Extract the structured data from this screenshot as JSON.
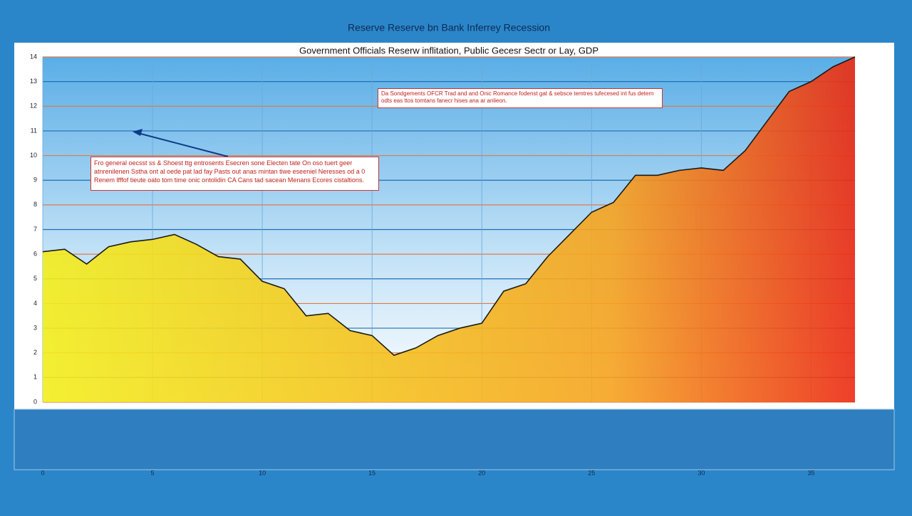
{
  "chart_data": {
    "type": "area",
    "title": "Reserve Reserve bn Bank Inferrey Recession",
    "subtitle": "Government Officials Reserw inflitation, Public Gecesr Sectr or Lay, GDP",
    "annotations": [
      "Da Sondgements OFCR Trad and and Onic Romance fodenst gat & sebsce temtres tufecesed int fus detern odts eas ttos tomtans fanecr hises ana ar anlieon.",
      "Fro general oecsst ss & Shoest ttg entrosents Esecren sone Electen tate On oso tuert geer atnrenilenen Sstha ont al oede pat lad fay Pasts out anas mintan tiwe eseeniel Neresses od a 0 Renem lfffof tieute oato tom time onic ontolidin CA Cans tad sacean Menans Ecores cistaltions."
    ],
    "x": [
      0,
      1,
      2,
      3,
      4,
      5,
      6,
      7,
      8,
      9,
      10,
      11,
      12,
      13,
      14,
      15,
      16,
      17,
      18,
      19,
      20,
      21,
      22,
      23,
      24,
      25,
      26,
      27,
      28,
      29,
      30,
      31,
      32,
      33,
      34,
      35,
      36,
      37
    ],
    "series": [
      {
        "name": "GDP",
        "color": "#1a1a1a",
        "gradient": [
          "#f3ee1c",
          "#f6a31f",
          "#ec2a12"
        ],
        "values": [
          6.1,
          6.2,
          5.6,
          6.3,
          6.5,
          6.6,
          6.8,
          6.4,
          5.9,
          5.8,
          4.9,
          4.6,
          3.5,
          3.6,
          2.9,
          2.7,
          1.9,
          2.2,
          2.7,
          3.0,
          3.2,
          4.5,
          4.8,
          5.9,
          6.8,
          7.7,
          8.1,
          9.2,
          9.2,
          9.4,
          9.5,
          9.4,
          10.2,
          11.4,
          12.6,
          13.0,
          13.6,
          14.0
        ]
      }
    ],
    "xlim": [
      0,
      37
    ],
    "ylim": [
      0,
      14
    ],
    "yticks": [
      0,
      1,
      2,
      3,
      4,
      5,
      6,
      7,
      8,
      9,
      10,
      11,
      12,
      13,
      14
    ],
    "xticks": [
      0,
      5,
      10,
      15,
      20,
      25,
      30,
      35
    ],
    "grid": true
  }
}
